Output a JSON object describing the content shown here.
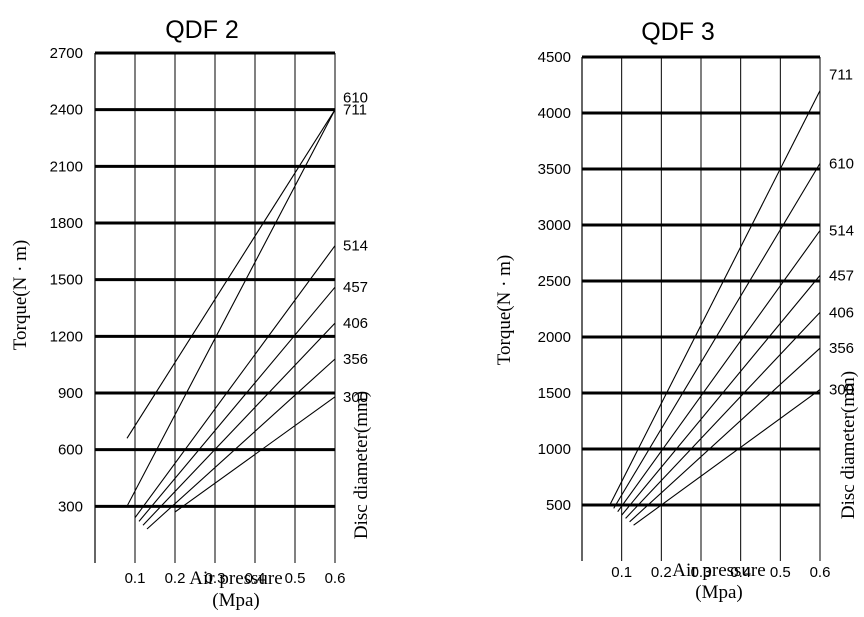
{
  "chart_data": [
    {
      "type": "line",
      "title": "QDF 2",
      "xlabel": "Air pressure",
      "xlabel_unit": "(Mpa)",
      "ylabel": "Torque(N · m)",
      "series_axis_label": "Disc diameter(mm)",
      "xlim": [
        0,
        0.6
      ],
      "ylim": [
        0,
        2700
      ],
      "x_ticks": [
        "0.1",
        "0.2",
        "0.3",
        "0.4",
        "0.5",
        "0.6"
      ],
      "y_ticks": [
        "300",
        "600",
        "900",
        "1200",
        "1500",
        "1800",
        "2100",
        "2400",
        "2700"
      ],
      "series": [
        {
          "name": "711",
          "x": [
            0.08,
            0.6
          ],
          "y": [
            660,
            2400
          ]
        },
        {
          "name": "610",
          "x": [
            0.08,
            0.6
          ],
          "y": [
            300,
            2400
          ]
        },
        {
          "name": "514",
          "x": [
            0.1,
            0.6
          ],
          "y": [
            240,
            1680
          ]
        },
        {
          "name": "457",
          "x": [
            0.11,
            0.6
          ],
          "y": [
            220,
            1460
          ]
        },
        {
          "name": "406",
          "x": [
            0.12,
            0.6
          ],
          "y": [
            200,
            1270
          ]
        },
        {
          "name": "356",
          "x": [
            0.13,
            0.6
          ],
          "y": [
            180,
            1080
          ]
        },
        {
          "name": "300",
          "x": [
            0.2,
            0.6
          ],
          "y": [
            270,
            880
          ]
        }
      ]
    },
    {
      "type": "line",
      "title": "QDF 3",
      "xlabel": "Air pressure",
      "xlabel_unit": "(Mpa)",
      "ylabel": "Torque(N · m)",
      "series_axis_label": "Disc diameter(mm)",
      "xlim": [
        0,
        0.6
      ],
      "ylim": [
        0,
        4500
      ],
      "x_ticks": [
        "0.1",
        "0.2",
        "0.3",
        "0.4",
        "0.5",
        "0.6"
      ],
      "y_ticks": [
        "500",
        "1000",
        "1500",
        "2000",
        "2500",
        "3000",
        "3500",
        "4000",
        "4500"
      ],
      "series": [
        {
          "name": "711",
          "x": [
            0.07,
            0.6
          ],
          "y": [
            500,
            4200
          ]
        },
        {
          "name": "610",
          "x": [
            0.08,
            0.6
          ],
          "y": [
            470,
            3550
          ]
        },
        {
          "name": "514",
          "x": [
            0.09,
            0.6
          ],
          "y": [
            440,
            2950
          ]
        },
        {
          "name": "457",
          "x": [
            0.1,
            0.6
          ],
          "y": [
            410,
            2550
          ]
        },
        {
          "name": "406",
          "x": [
            0.11,
            0.6
          ],
          "y": [
            380,
            2220
          ]
        },
        {
          "name": "356",
          "x": [
            0.12,
            0.6
          ],
          "y": [
            350,
            1900
          ]
        },
        {
          "name": "300",
          "x": [
            0.13,
            0.6
          ],
          "y": [
            320,
            1530
          ]
        }
      ]
    }
  ]
}
